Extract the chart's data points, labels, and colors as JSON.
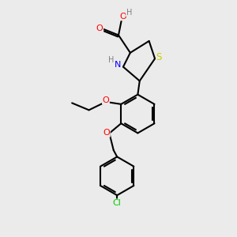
{
  "background_color": "#ebebeb",
  "bond_color": "#000000",
  "bond_width": 1.5,
  "atom_colors": {
    "O": "#ff0000",
    "N": "#0000ff",
    "S": "#cccc00",
    "Cl": "#00cc00",
    "H": "#808080",
    "C": "#000000"
  },
  "figsize": [
    3.0,
    3.0
  ],
  "dpi": 100
}
